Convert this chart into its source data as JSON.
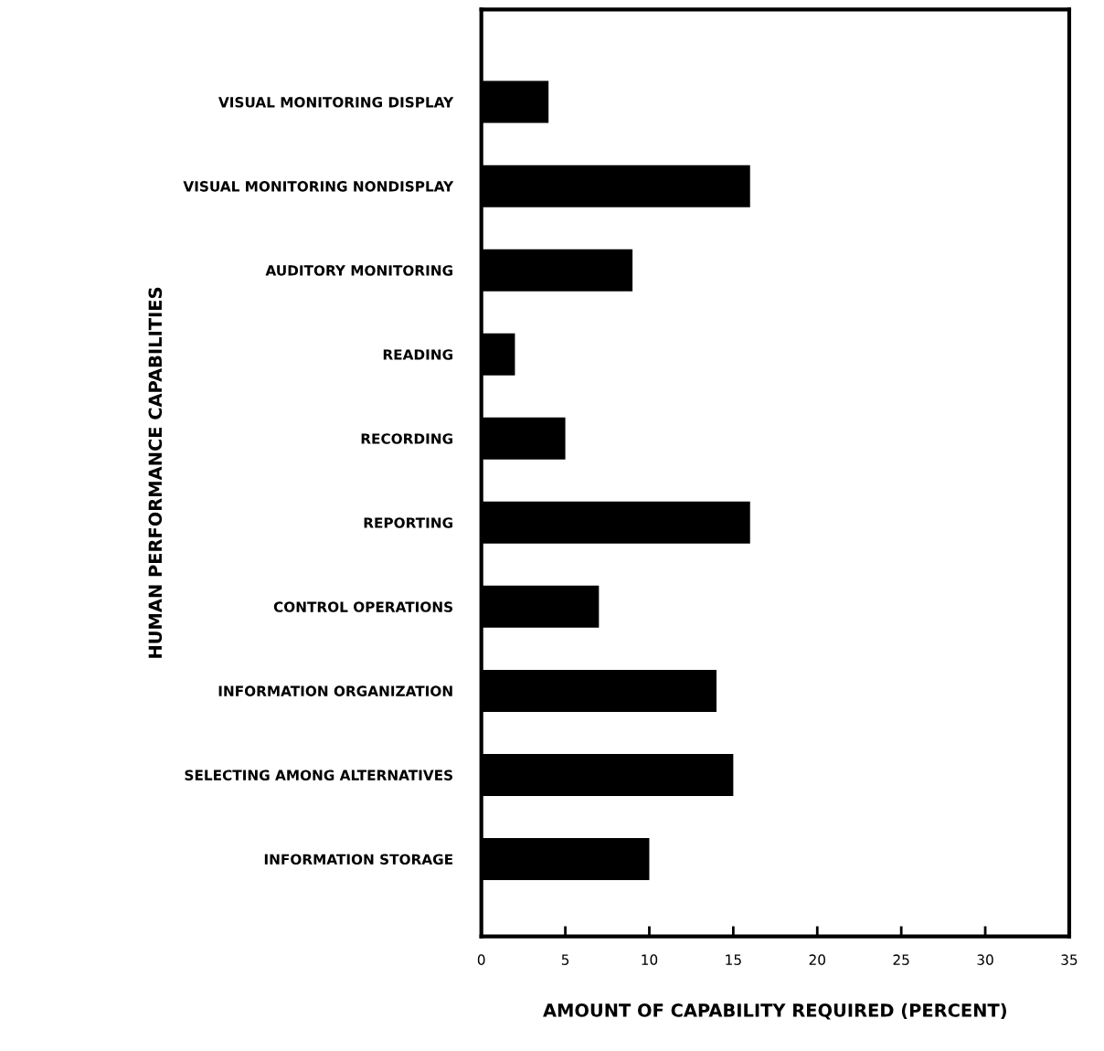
{
  "chart_data": {
    "type": "bar",
    "orientation": "horizontal",
    "categories": [
      "VISUAL MONITORING DISPLAY",
      "VISUAL MONITORING NONDISPLAY",
      "AUDITORY MONITORING",
      "READING",
      "RECORDING",
      "REPORTING",
      "CONTROL OPERATIONS",
      "INFORMATION ORGANIZATION",
      "SELECTING AMONG ALTERNATIVES",
      "INFORMATION STORAGE"
    ],
    "values": [
      4,
      16,
      9,
      2,
      5,
      16,
      7,
      14,
      15,
      10
    ],
    "color": "#000000",
    "xlim": [
      0,
      35
    ],
    "xticks": [
      0,
      5,
      10,
      15,
      20,
      25,
      30,
      35
    ],
    "xlabel": "AMOUNT OF CAPABILITY REQUIRED (PERCENT)",
    "ylabel": "HUMAN PERFORMANCE CAPABILITIES",
    "grid": false
  }
}
